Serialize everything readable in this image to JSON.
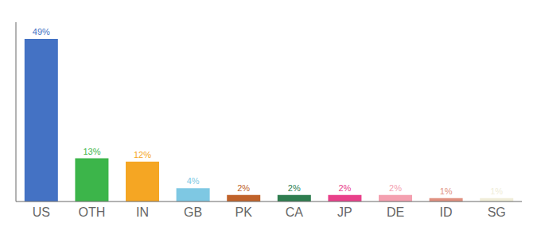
{
  "chart_data": {
    "type": "bar",
    "categories": [
      "US",
      "OTH",
      "IN",
      "GB",
      "PK",
      "CA",
      "JP",
      "DE",
      "ID",
      "SG"
    ],
    "values": [
      49,
      13,
      12,
      4,
      2,
      2,
      2,
      2,
      1,
      1
    ],
    "value_labels": [
      "49%",
      "13%",
      "12%",
      "4%",
      "2%",
      "2%",
      "2%",
      "2%",
      "1%",
      "1%"
    ],
    "colors": [
      "#4472c4",
      "#3cb54a",
      "#f5a623",
      "#7ec8e3",
      "#c0622a",
      "#2e7d4f",
      "#e8408a",
      "#f4a0b0",
      "#e09080",
      "#f0edd8"
    ],
    "ylim": [
      0,
      54
    ],
    "data_labels": true,
    "tick_labels": "x",
    "grid": false
  }
}
